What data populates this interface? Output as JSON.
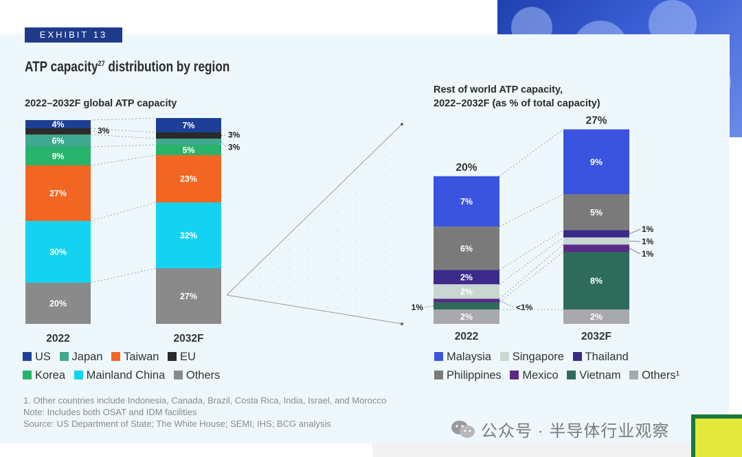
{
  "exhibit_label": "EXHIBIT 13",
  "title": "ATP capacity",
  "title_sup": "27",
  "title_rest": " distribution by region",
  "watermark": "公众号 · 半导体行业观察",
  "colors": {
    "panel_bg": "#eef8fc",
    "US": "#1d3f96",
    "Japan": "#3fa88f",
    "Taiwan": "#f26522",
    "EU": "#2a2a2a",
    "Korea": "#27b36a",
    "Mainland China": "#14d3f2",
    "Others": "#8a8a8a",
    "Malaysia": "#3b54e0",
    "Singapore": "#c8d8d0",
    "Thailand": "#3b2a8a",
    "Philippines": "#7a7a7a",
    "Mexico": "#5a2a8a",
    "Vietnam": "#2e6b5a",
    "Others1": "#a8a8b0"
  },
  "chart_data": [
    {
      "type": "bar",
      "stacked": true,
      "subtitle": "2022–2032F global ATP capacity",
      "categories": [
        "2022",
        "2032F"
      ],
      "series": [
        {
          "name": "Others",
          "values": [
            20,
            27
          ],
          "labels": [
            "20%",
            "27%"
          ]
        },
        {
          "name": "Mainland China",
          "values": [
            30,
            32
          ],
          "labels": [
            "30%",
            "32%"
          ]
        },
        {
          "name": "Taiwan",
          "values": [
            27,
            23
          ],
          "labels": [
            "27%",
            "23%"
          ]
        },
        {
          "name": "Korea",
          "values": [
            9,
            5
          ],
          "labels": [
            "9%",
            "5%"
          ]
        },
        {
          "name": "Japan",
          "values": [
            6,
            3
          ],
          "labels": [
            "6%",
            "3%"
          ]
        },
        {
          "name": "EU",
          "values": [
            3,
            3
          ],
          "labels": [
            "3%",
            "3%"
          ]
        },
        {
          "name": "US",
          "values": [
            4,
            7
          ],
          "labels": [
            "4%",
            "7%"
          ]
        }
      ],
      "legend": [
        "US",
        "Japan",
        "Taiwan",
        "EU",
        "Korea",
        "Mainland China",
        "Others"
      ]
    },
    {
      "type": "bar",
      "stacked": true,
      "subtitle_line1": "Rest of world ATP capacity,",
      "subtitle_line2": "2022–2032F (as % of total capacity)",
      "categories": [
        "2022",
        "2032F"
      ],
      "totals": [
        "20%",
        "27%"
      ],
      "series": [
        {
          "name": "Others¹",
          "values": [
            2,
            2
          ],
          "labels": [
            "2%",
            "2%"
          ]
        },
        {
          "name": "Vietnam",
          "values": [
            1,
            8
          ],
          "labels": [
            "1%",
            "8%"
          ]
        },
        {
          "name": "Mexico",
          "values": [
            0.5,
            1
          ],
          "labels": [
            "<1%",
            "1%"
          ]
        },
        {
          "name": "Singapore",
          "values": [
            2,
            1
          ],
          "labels": [
            "2%",
            "1%"
          ]
        },
        {
          "name": "Thailand",
          "values": [
            2,
            1
          ],
          "labels": [
            "2%",
            "1%"
          ]
        },
        {
          "name": "Philippines",
          "values": [
            6,
            5
          ],
          "labels": [
            "6%",
            "5%"
          ]
        },
        {
          "name": "Malaysia",
          "values": [
            7,
            9
          ],
          "labels": [
            "7%",
            "9%"
          ]
        }
      ],
      "legend": [
        "Malaysia",
        "Singapore",
        "Thailand",
        "Philippines",
        "Mexico",
        "Vietnam",
        "Others¹"
      ]
    }
  ],
  "notes": [
    "1. Other countries include Indonesia, Canada, Brazil, Costa Rica, India, Israel, and Morocco",
    "Note: Includes both OSAT and IDM facilities",
    "Source: US Department of State; The White House; SEMI; IHS; BCG analysis"
  ]
}
